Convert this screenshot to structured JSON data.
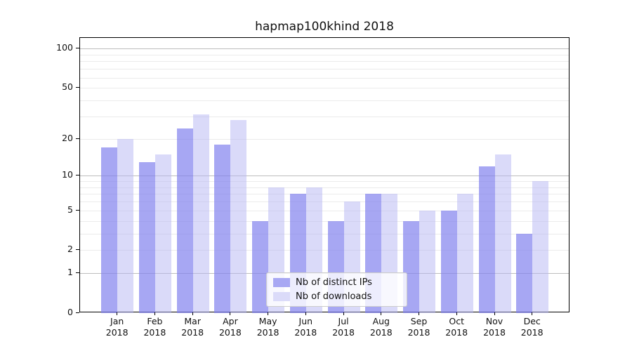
{
  "chart_data": {
    "type": "bar",
    "title": "hapmap100khind 2018",
    "scale": "log1p",
    "ylim": [
      0,
      121
    ],
    "grid": "on",
    "legend_position": "lower center",
    "categories": [
      "Jan",
      "Feb",
      "Mar",
      "Apr",
      "May",
      "Jun",
      "Jul",
      "Aug",
      "Sep",
      "Oct",
      "Nov",
      "Dec"
    ],
    "year_label": "2018",
    "series": [
      {
        "name": "Nb of distinct IPs",
        "values": [
          17,
          13,
          24,
          18,
          4,
          7,
          4,
          7,
          4,
          5,
          12,
          3
        ],
        "bar_color": "rgba(130,130,238,0.7)",
        "swatch_color": "#a8a8f3"
      },
      {
        "name": "Nb of downloads",
        "values": [
          20,
          15,
          31,
          28,
          8,
          8,
          6,
          7,
          5,
          7,
          15,
          9
        ],
        "bar_color": "rgba(182,182,243,0.5)",
        "swatch_color": "#dbdbf9"
      }
    ],
    "yticks": [
      100,
      50,
      20,
      10,
      5,
      2,
      1,
      0
    ],
    "grid_major_values": [
      1,
      10,
      100
    ],
    "grid_minor_values": [
      2,
      3,
      4,
      5,
      6,
      7,
      8,
      9,
      20,
      30,
      40,
      50,
      60,
      70,
      80,
      90
    ],
    "colors": {
      "grid_major": "#bdbdbd",
      "grid_minor": "#ebebeb",
      "spine": "#000000",
      "text": "#111111",
      "background": "#ffffff"
    }
  }
}
